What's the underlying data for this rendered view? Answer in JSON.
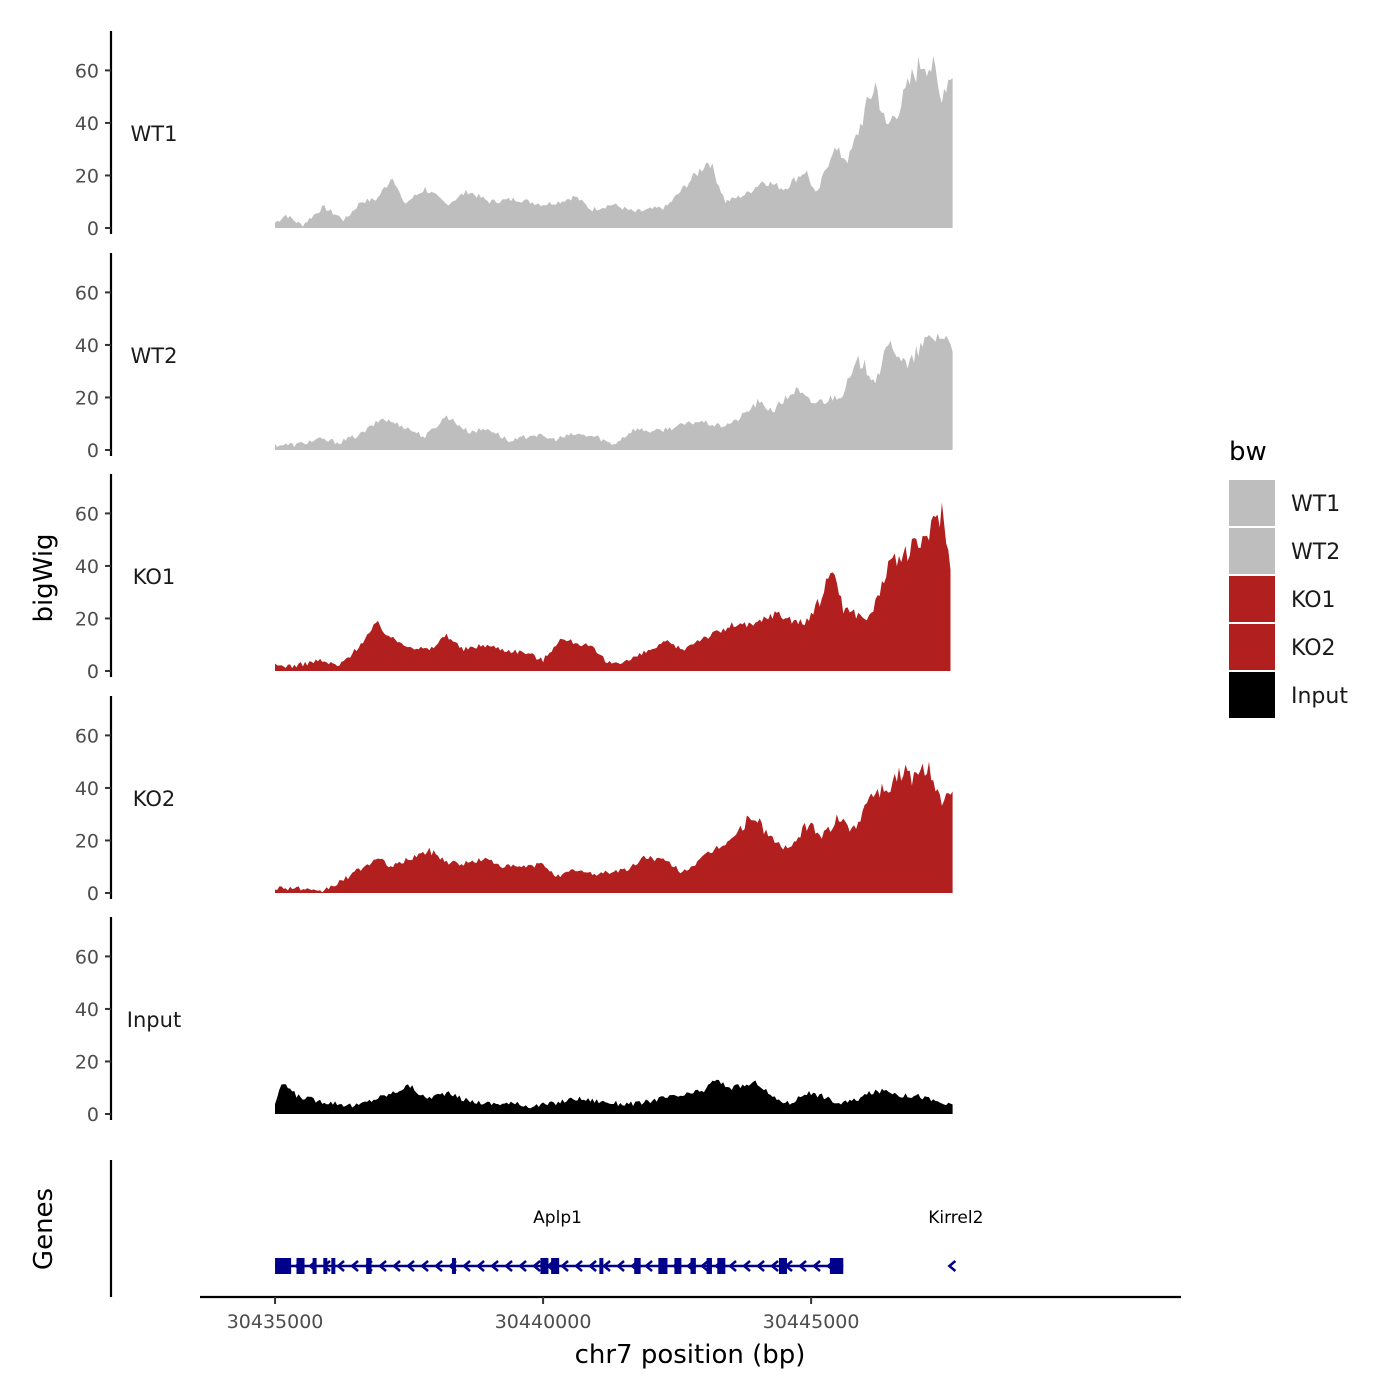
{
  "chart_data": {
    "type": "area",
    "y_axis_title": "bigWig",
    "x_axis_title": "chr7 position (bp)",
    "genes_axis_title": "Genes",
    "y_range": [
      0,
      75
    ],
    "y_ticks": [
      0,
      20,
      40,
      60
    ],
    "x_range": [
      30433600,
      30451900
    ],
    "x_ticks": [
      30435000,
      30440000,
      30445000
    ],
    "x_tick_labels": [
      "30435000",
      "30440000",
      "30445000"
    ],
    "track_x_range": [
      30435000,
      30447700
    ],
    "legend": {
      "title": "bw",
      "entries": [
        {
          "label": "WT1",
          "color": "#bebebe"
        },
        {
          "label": "WT2",
          "color": "#bebebe"
        },
        {
          "label": "KO1",
          "color": "#b21f1f"
        },
        {
          "label": "KO2",
          "color": "#b21f1f"
        },
        {
          "label": "Input",
          "color": "#000000"
        }
      ]
    },
    "series": [
      {
        "name": "WT1",
        "color": "#bebebe",
        "anchors": [
          [
            30435000,
            2
          ],
          [
            30435200,
            5
          ],
          [
            30435500,
            1
          ],
          [
            30435900,
            8
          ],
          [
            30436300,
            3
          ],
          [
            30436600,
            10
          ],
          [
            30436900,
            11
          ],
          [
            30437200,
            20
          ],
          [
            30437400,
            9
          ],
          [
            30437800,
            15
          ],
          [
            30438200,
            9
          ],
          [
            30438600,
            14
          ],
          [
            30439000,
            10
          ],
          [
            30439500,
            11
          ],
          [
            30440000,
            9
          ],
          [
            30440300,
            10
          ],
          [
            30440600,
            12
          ],
          [
            30440900,
            7
          ],
          [
            30441300,
            9
          ],
          [
            30441700,
            6
          ],
          [
            30442000,
            7
          ],
          [
            30442300,
            8
          ],
          [
            30442700,
            17
          ],
          [
            30443100,
            26
          ],
          [
            30443400,
            10
          ],
          [
            30443800,
            13
          ],
          [
            30444100,
            18
          ],
          [
            30444500,
            15
          ],
          [
            30444900,
            22
          ],
          [
            30445100,
            12
          ],
          [
            30445400,
            30
          ],
          [
            30445700,
            26
          ],
          [
            30446000,
            44
          ],
          [
            30446200,
            55
          ],
          [
            30446400,
            38
          ],
          [
            30446700,
            48
          ],
          [
            30446900,
            58
          ],
          [
            30447100,
            64
          ],
          [
            30447300,
            60
          ],
          [
            30447400,
            50
          ],
          [
            30447640,
            60
          ]
        ]
      },
      {
        "name": "WT2",
        "color": "#bebebe",
        "anchors": [
          [
            30435000,
            2
          ],
          [
            30435400,
            2
          ],
          [
            30435800,
            4
          ],
          [
            30436200,
            3
          ],
          [
            30436600,
            6
          ],
          [
            30437000,
            12
          ],
          [
            30437400,
            9
          ],
          [
            30437800,
            5
          ],
          [
            30438200,
            13
          ],
          [
            30438600,
            7
          ],
          [
            30439000,
            8
          ],
          [
            30439400,
            3
          ],
          [
            30439800,
            6
          ],
          [
            30440200,
            4
          ],
          [
            30440600,
            6
          ],
          [
            30441000,
            5
          ],
          [
            30441300,
            2
          ],
          [
            30441700,
            8
          ],
          [
            30442100,
            7
          ],
          [
            30442500,
            9
          ],
          [
            30442900,
            11
          ],
          [
            30443300,
            9
          ],
          [
            30443600,
            11
          ],
          [
            30444000,
            18
          ],
          [
            30444300,
            15
          ],
          [
            30444700,
            23
          ],
          [
            30445000,
            18
          ],
          [
            30445300,
            19
          ],
          [
            30445600,
            22
          ],
          [
            30445900,
            34
          ],
          [
            30446200,
            27
          ],
          [
            30446500,
            41
          ],
          [
            30446800,
            31
          ],
          [
            30447000,
            38
          ],
          [
            30447200,
            42
          ],
          [
            30447400,
            44
          ],
          [
            30447640,
            40
          ]
        ]
      },
      {
        "name": "KO1",
        "color": "#b21f1f",
        "anchors": [
          [
            30435000,
            2
          ],
          [
            30435400,
            2
          ],
          [
            30435800,
            4
          ],
          [
            30436200,
            2
          ],
          [
            30436500,
            8
          ],
          [
            30436900,
            18
          ],
          [
            30437200,
            12
          ],
          [
            30437600,
            9
          ],
          [
            30437900,
            8
          ],
          [
            30438200,
            14
          ],
          [
            30438500,
            8
          ],
          [
            30438900,
            10
          ],
          [
            30439300,
            8
          ],
          [
            30439700,
            7
          ],
          [
            30440000,
            4
          ],
          [
            30440300,
            12
          ],
          [
            30440600,
            11
          ],
          [
            30440900,
            9
          ],
          [
            30441200,
            3
          ],
          [
            30441600,
            4
          ],
          [
            30441900,
            7
          ],
          [
            30442300,
            11
          ],
          [
            30442600,
            8
          ],
          [
            30442900,
            12
          ],
          [
            30443300,
            15
          ],
          [
            30443600,
            18
          ],
          [
            30443900,
            17
          ],
          [
            30444300,
            22
          ],
          [
            30444600,
            20
          ],
          [
            30444900,
            18
          ],
          [
            30445200,
            28
          ],
          [
            30445400,
            40
          ],
          [
            30445600,
            24
          ],
          [
            30445800,
            22
          ],
          [
            30446100,
            20
          ],
          [
            30446400,
            38
          ],
          [
            30446700,
            44
          ],
          [
            30447000,
            48
          ],
          [
            30447300,
            56
          ],
          [
            30447450,
            62
          ],
          [
            30447600,
            38
          ]
        ]
      },
      {
        "name": "KO2",
        "color": "#b21f1f",
        "anchors": [
          [
            30435000,
            2
          ],
          [
            30435400,
            2
          ],
          [
            30435800,
            0
          ],
          [
            30436200,
            4
          ],
          [
            30436500,
            8
          ],
          [
            30436900,
            13
          ],
          [
            30437200,
            10
          ],
          [
            30437600,
            14
          ],
          [
            30437900,
            16
          ],
          [
            30438200,
            12
          ],
          [
            30438500,
            11
          ],
          [
            30438900,
            13
          ],
          [
            30439300,
            10
          ],
          [
            30439700,
            10
          ],
          [
            30440000,
            11
          ],
          [
            30440300,
            6
          ],
          [
            30440600,
            9
          ],
          [
            30440900,
            7
          ],
          [
            30441200,
            8
          ],
          [
            30441600,
            9
          ],
          [
            30441900,
            14
          ],
          [
            30442300,
            12
          ],
          [
            30442600,
            8
          ],
          [
            30442900,
            12
          ],
          [
            30443300,
            18
          ],
          [
            30443600,
            22
          ],
          [
            30443900,
            30
          ],
          [
            30444300,
            20
          ],
          [
            30444600,
            16
          ],
          [
            30444900,
            26
          ],
          [
            30445200,
            22
          ],
          [
            30445500,
            28
          ],
          [
            30445800,
            24
          ],
          [
            30446100,
            38
          ],
          [
            30446400,
            40
          ],
          [
            30446700,
            46
          ],
          [
            30447000,
            44
          ],
          [
            30447200,
            50
          ],
          [
            30447400,
            36
          ],
          [
            30447640,
            36
          ]
        ]
      },
      {
        "name": "Input",
        "color": "#000000",
        "anchors": [
          [
            30435000,
            4
          ],
          [
            30435150,
            12
          ],
          [
            30435400,
            7
          ],
          [
            30435800,
            5
          ],
          [
            30436200,
            4
          ],
          [
            30436500,
            3
          ],
          [
            30436900,
            6
          ],
          [
            30437200,
            8
          ],
          [
            30437500,
            11
          ],
          [
            30437800,
            6
          ],
          [
            30438200,
            8
          ],
          [
            30438600,
            5
          ],
          [
            30439000,
            4
          ],
          [
            30439400,
            4
          ],
          [
            30439800,
            3
          ],
          [
            30440200,
            4
          ],
          [
            30440600,
            6
          ],
          [
            30441000,
            5
          ],
          [
            30441400,
            4
          ],
          [
            30441800,
            4
          ],
          [
            30442200,
            6
          ],
          [
            30442600,
            7
          ],
          [
            30443000,
            9
          ],
          [
            30443200,
            13
          ],
          [
            30443500,
            10
          ],
          [
            30443800,
            11
          ],
          [
            30444000,
            12
          ],
          [
            30444300,
            6
          ],
          [
            30444600,
            4
          ],
          [
            30444900,
            8
          ],
          [
            30445200,
            7
          ],
          [
            30445500,
            4
          ],
          [
            30445800,
            5
          ],
          [
            30446100,
            8
          ],
          [
            30446400,
            9
          ],
          [
            30446700,
            7
          ],
          [
            30447000,
            7
          ],
          [
            30447300,
            5
          ],
          [
            30447640,
            3
          ]
        ]
      }
    ],
    "gene_track": {
      "genes": [
        {
          "name": "Aplp1",
          "strand": "-",
          "start": 30435000,
          "end": 30445600,
          "exons": [
            [
              30435000,
              30435300
            ],
            [
              30435400,
              30435550
            ],
            [
              30435700,
              30435760
            ],
            [
              30435900,
              30435960
            ],
            [
              30436050,
              30436080
            ],
            [
              30436700,
              30436800
            ],
            [
              30438300,
              30438370
            ],
            [
              30439950,
              30440100
            ],
            [
              30440150,
              30440300
            ],
            [
              30441050,
              30441110
            ],
            [
              30441700,
              30441820
            ],
            [
              30442150,
              30442320
            ],
            [
              30442450,
              30442580
            ],
            [
              30442750,
              30442850
            ],
            [
              30443050,
              30443150
            ],
            [
              30443250,
              30443400
            ],
            [
              30444400,
              30444550
            ],
            [
              30445350,
              30445600
            ]
          ]
        },
        {
          "name": "Kirrel2",
          "strand": "-",
          "start": 30447570,
          "end": 30447700,
          "exons": []
        }
      ]
    }
  }
}
